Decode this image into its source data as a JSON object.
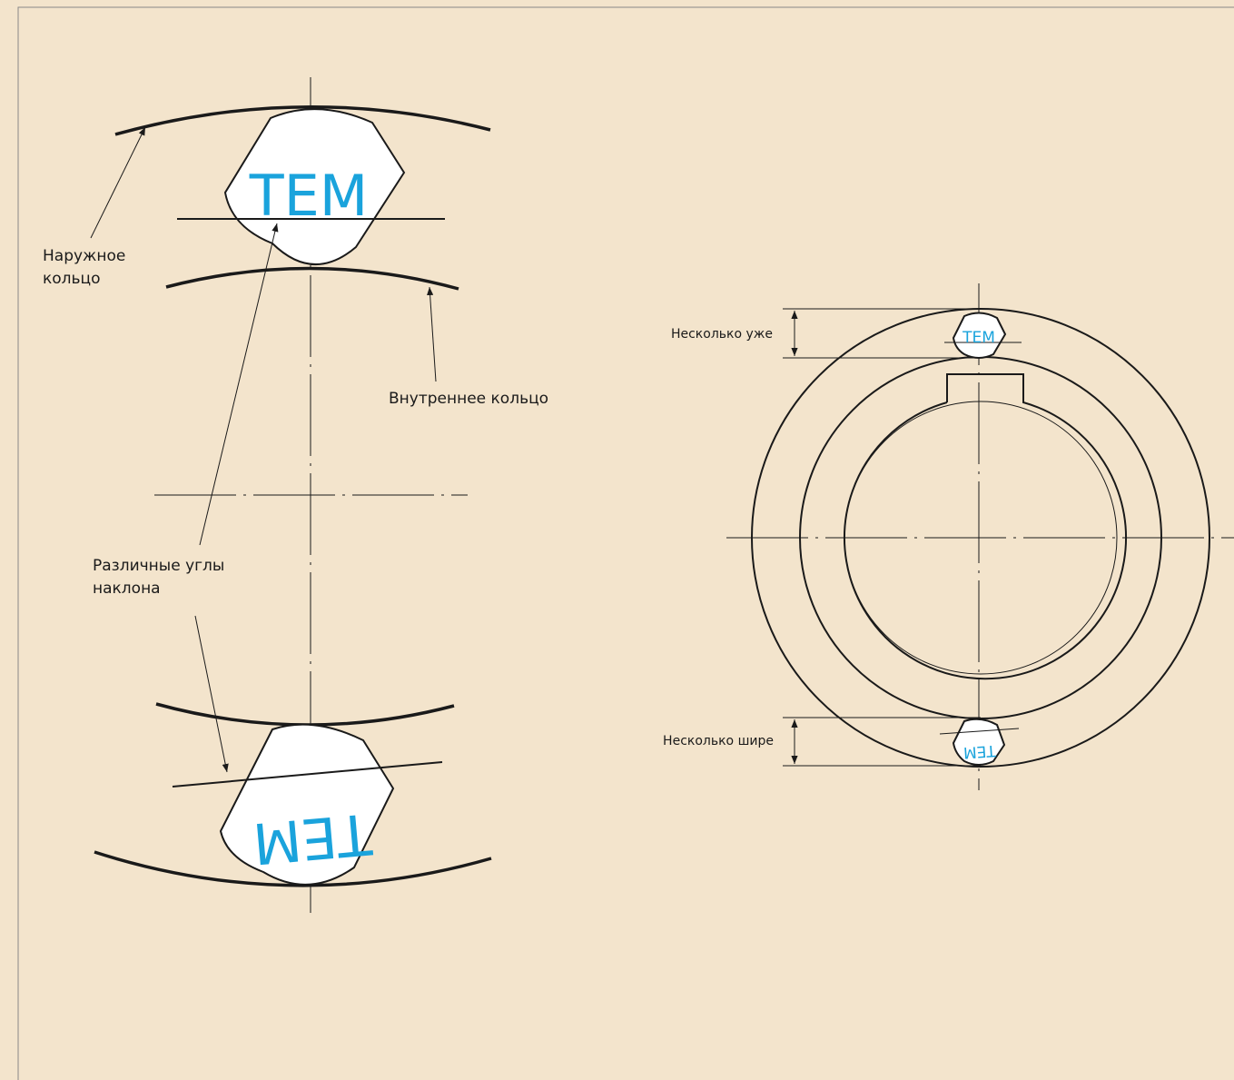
{
  "left_view": {
    "sprag_top_label": "TEM",
    "sprag_bottom_label": "TEM",
    "outer_ring_label": [
      "Наружное",
      "кольцо"
    ],
    "inner_ring_label": "Внутреннее кольцо",
    "angle_label": [
      "Различные углы",
      "наклона"
    ]
  },
  "right_view": {
    "sprag_top_label": "TEM",
    "sprag_bottom_label": "TEM",
    "narrower_label": "Несколько уже",
    "wider_label": "Несколько шире"
  }
}
